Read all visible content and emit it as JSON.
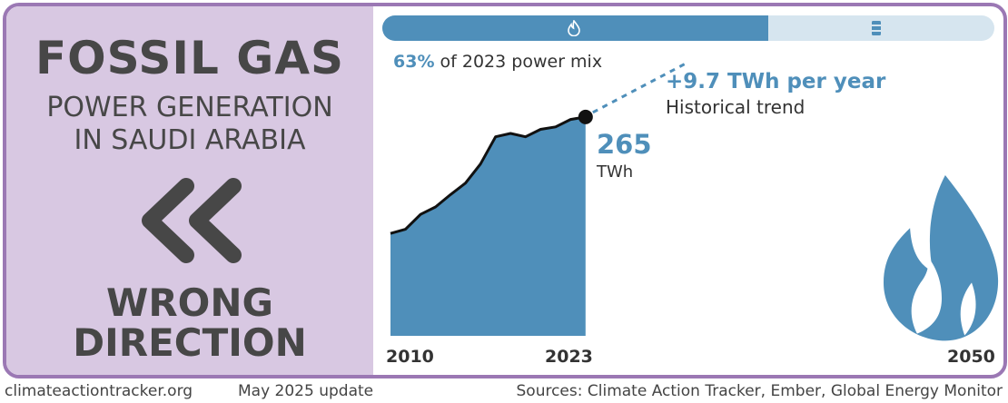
{
  "title": "FOSSIL GAS",
  "subtitle_line1": "POWER GENERATION",
  "subtitle_line2": "IN SAUDI ARABIA",
  "status_line1": "WRONG",
  "status_line2": "DIRECTION",
  "status_icon": "double-chevron-left-icon",
  "mix_bar": {
    "share": 0.63,
    "fill_icon": "flame-icon",
    "rest_icon": "barrel-icon",
    "fill_color": "#4f8fba",
    "rest_color": "#d6e5ef"
  },
  "mix_text": {
    "percent": "63%",
    "rest": "of 2023 power mix"
  },
  "trend": {
    "value": "+9.7 TWh per year",
    "label": "Historical trend",
    "rate": 9.7
  },
  "current": {
    "value": "265",
    "unit": "TWh"
  },
  "colors": {
    "accent": "#4f8fba",
    "panel": "#d8c8e2",
    "border": "#9b78b4",
    "text": "#474747"
  },
  "chart_data": {
    "type": "area",
    "x": [
      2010,
      2011,
      2012,
      2013,
      2014,
      2015,
      2016,
      2017,
      2018,
      2019,
      2020,
      2021,
      2022,
      2023
    ],
    "values": [
      124,
      129,
      147,
      156,
      171,
      185,
      208,
      241,
      245,
      241,
      250,
      253,
      262,
      265
    ],
    "xlim": [
      2010,
      2050
    ],
    "ylim": [
      0,
      400
    ],
    "x_tick_labels": [
      "2010",
      "2023",
      "2050"
    ],
    "decorative_icon": "flame-icon"
  },
  "footer": {
    "site": "climateactiontracker.org",
    "update": "May 2025 update",
    "sources": "Sources: Climate Action Tracker, Ember, Global Energy Monitor"
  }
}
